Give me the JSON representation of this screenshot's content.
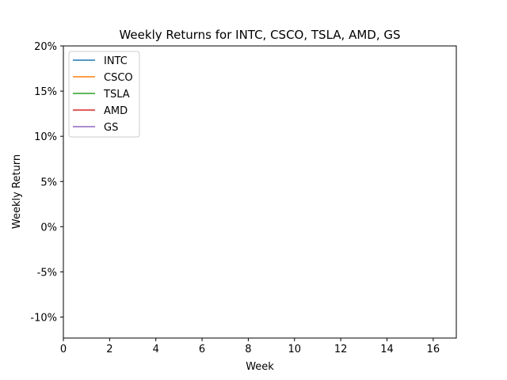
{
  "chart_data": {
    "type": "line",
    "title": "Weekly Returns for INTC, CSCO, TSLA, AMD, GS",
    "xlabel": "Week",
    "ylabel": "Weekly Return",
    "xlim": [
      0,
      17
    ],
    "ylim": [
      -0.1232,
      0.2
    ],
    "x_ticks": [
      0,
      2,
      4,
      6,
      8,
      10,
      12,
      14,
      16
    ],
    "x_tick_labels": [
      "0",
      "2",
      "4",
      "6",
      "8",
      "10",
      "12",
      "14",
      "16"
    ],
    "y_ticks": [
      -0.1,
      -0.05,
      0.0,
      0.05,
      0.1,
      0.15,
      0.2
    ],
    "y_tick_labels": [
      "-10%",
      "-5%",
      "0%",
      "5%",
      "10%",
      "15%",
      "20%"
    ],
    "grid": false,
    "legend_position": "top-left",
    "series": [
      {
        "name": "INTC",
        "color": "#1f77b4",
        "x": [],
        "y": []
      },
      {
        "name": "CSCO",
        "color": "#ff7f0e",
        "x": [],
        "y": []
      },
      {
        "name": "TSLA",
        "color": "#2ca02c",
        "x": [],
        "y": []
      },
      {
        "name": "AMD",
        "color": "#d62728",
        "x": [],
        "y": []
      },
      {
        "name": "GS",
        "color": "#9467bd",
        "x": [],
        "y": []
      }
    ]
  }
}
